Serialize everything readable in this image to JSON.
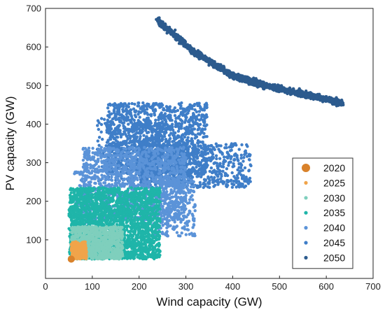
{
  "chart_data": {
    "type": "scatter",
    "xlabel": "Wind capacity (GW)",
    "ylabel": "PV capacity (GW)",
    "xlim": [
      0,
      700
    ],
    "ylim": [
      0,
      700
    ],
    "xticks": [
      0,
      100,
      200,
      300,
      400,
      500,
      600,
      700
    ],
    "yticks": [
      100,
      200,
      300,
      400,
      500,
      600,
      700
    ],
    "grid": false,
    "legend_position": "bottom-right",
    "series": [
      {
        "name": "2020",
        "color": "#d9822b",
        "marker_size": 5,
        "regions": [
          {
            "shape": "point",
            "x": 55,
            "y": 50
          }
        ]
      },
      {
        "name": "2025",
        "color": "#f0a44a",
        "marker_size": 2.2,
        "regions": [
          {
            "shape": "rect",
            "x": [
              55,
              88
            ],
            "y": [
              50,
              95
            ],
            "n": 260
          }
        ]
      },
      {
        "name": "2030",
        "color": "#7fcfbd",
        "marker_size": 2.2,
        "regions": [
          {
            "shape": "rect",
            "x": [
              55,
              165
            ],
            "y": [
              50,
              135
            ],
            "n": 900
          }
        ]
      },
      {
        "name": "2035",
        "color": "#1fb5a9",
        "marker_size": 2.2,
        "regions": [
          {
            "shape": "rect",
            "x": [
              52,
              245
            ],
            "y": [
              50,
              235
            ],
            "n": 2200
          },
          {
            "shape": "rect",
            "x": [
              50,
              80
            ],
            "y": [
              60,
              215
            ],
            "n": 120
          }
        ]
      },
      {
        "name": "2040",
        "color": "#5b93d8",
        "marker_size": 2.2,
        "regions": [
          {
            "shape": "rect",
            "x": [
              80,
              300
            ],
            "y": [
              150,
              340
            ],
            "n": 1300
          },
          {
            "shape": "rect",
            "x": [
              230,
              320
            ],
            "y": [
              110,
              260
            ],
            "n": 300
          },
          {
            "shape": "rect",
            "x": [
              60,
              100
            ],
            "y": [
              130,
              280
            ],
            "n": 80
          }
        ]
      },
      {
        "name": "2045",
        "color": "#3f7ec8",
        "marker_size": 2.2,
        "regions": [
          {
            "shape": "rect",
            "x": [
              130,
              345
            ],
            "y": [
              270,
              455
            ],
            "n": 1300
          },
          {
            "shape": "rect",
            "x": [
              200,
              440
            ],
            "y": [
              235,
              350
            ],
            "n": 650
          },
          {
            "shape": "rect",
            "x": [
              110,
              300
            ],
            "y": [
              250,
              420
            ],
            "n": 300
          }
        ]
      },
      {
        "name": "2050",
        "color": "#2c5b8e",
        "marker_size": 2.2,
        "regions": [
          {
            "shape": "curve",
            "points": [
              [
                240,
                668
              ],
              [
                320,
                585
              ],
              [
                400,
                525
              ],
              [
                470,
                500
              ],
              [
                560,
                475
              ],
              [
                635,
                455
              ]
            ],
            "spread": 14,
            "n": 1500
          }
        ]
      }
    ]
  }
}
